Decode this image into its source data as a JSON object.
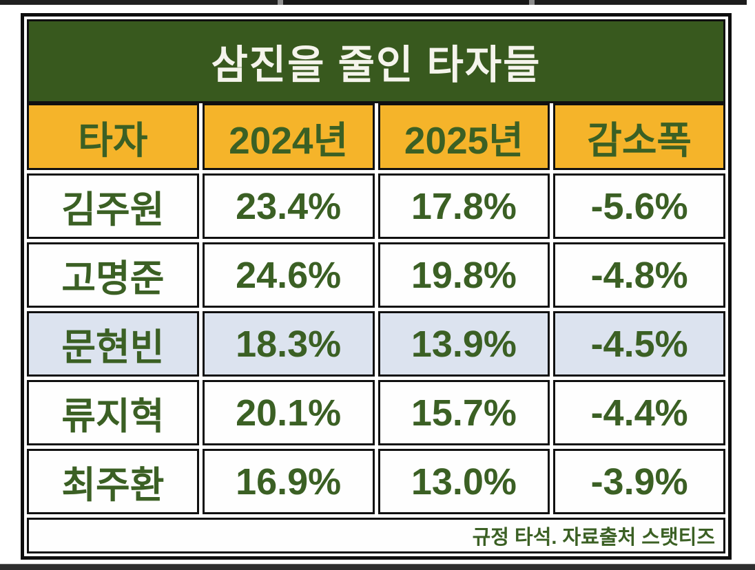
{
  "table": {
    "title": "삼진을 줄인 타자들",
    "columns": [
      "타자",
      "2024년",
      "2025년",
      "감소폭"
    ],
    "rows": [
      {
        "name": "김주원",
        "y2024": "23.4%",
        "y2025": "17.8%",
        "delta": "-5.6%"
      },
      {
        "name": "고명준",
        "y2024": "24.6%",
        "y2025": "19.8%",
        "delta": "-4.8%"
      },
      {
        "name": "문현빈",
        "y2024": "18.3%",
        "y2025": "13.9%",
        "delta": "-4.5%"
      },
      {
        "name": "류지혁",
        "y2024": "20.1%",
        "y2025": "15.7%",
        "delta": "-4.4%"
      },
      {
        "name": "최주환",
        "y2024": "16.9%",
        "y2025": "13.0%",
        "delta": "-3.9%"
      }
    ],
    "highlighted_row": "문현빈",
    "footnote": "규정 타석. 자료출처 스탯티즈"
  },
  "colors": {
    "title_background": "#38591E",
    "header_background": "#F5B42A",
    "text_green": "#3B6024",
    "title_text": "#F5F4EC",
    "highlight_row_background": "#DCE3EF",
    "border": "#101010"
  },
  "chart_data": {
    "type": "table",
    "title": "삼진을 줄인 타자들",
    "columns": [
      "타자",
      "2024년",
      "2025년",
      "감소폭"
    ],
    "rows": [
      [
        "김주원",
        "23.4%",
        "17.8%",
        "-5.6%"
      ],
      [
        "고명준",
        "24.6%",
        "19.8%",
        "-4.8%"
      ],
      [
        "문현빈",
        "18.3%",
        "13.9%",
        "-4.5%"
      ],
      [
        "류지혁",
        "20.1%",
        "15.7%",
        "-4.4%"
      ],
      [
        "최주환",
        "16.9%",
        "13.0%",
        "-3.9%"
      ]
    ],
    "series": [
      {
        "name": "2024년",
        "values": [
          23.4,
          24.6,
          18.3,
          20.1,
          16.9
        ]
      },
      {
        "name": "2025년",
        "values": [
          17.8,
          19.8,
          13.9,
          15.7,
          13.0
        ]
      },
      {
        "name": "감소폭",
        "values": [
          -5.6,
          -4.8,
          -4.5,
          -4.4,
          -3.9
        ]
      }
    ],
    "categories": [
      "김주원",
      "고명준",
      "문현빈",
      "류지혁",
      "최주환"
    ],
    "annotations": [
      "규정 타석. 자료출처 스탯티즈"
    ]
  }
}
